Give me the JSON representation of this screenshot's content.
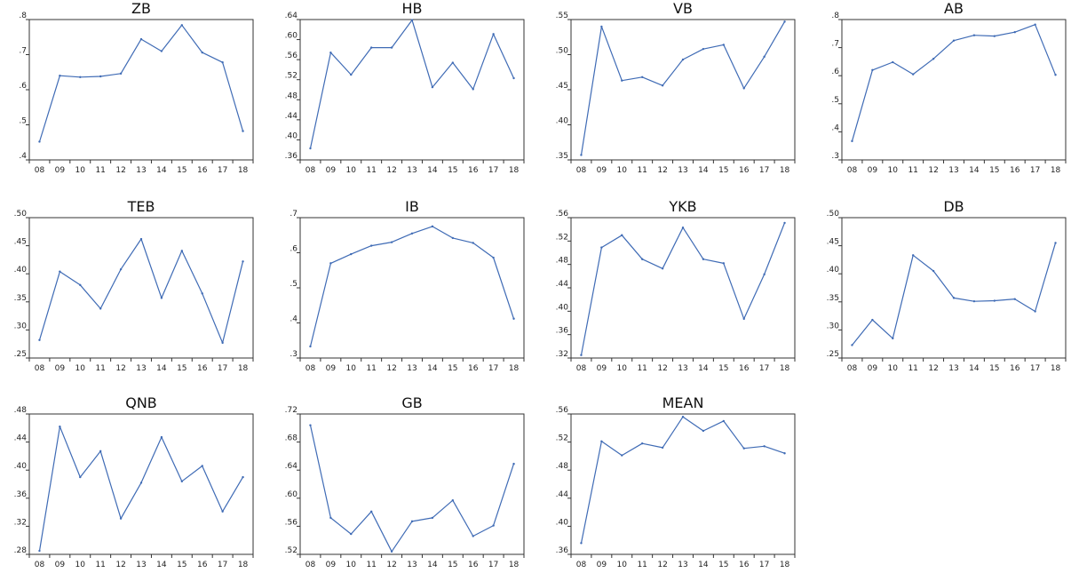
{
  "chart_data": [
    {
      "type": "line",
      "title": "ZB",
      "categories": [
        "08",
        "09",
        "10",
        "11",
        "12",
        "13",
        "14",
        "15",
        "16",
        "17",
        "18"
      ],
      "yticks": [
        ".4",
        ".5",
        ".6",
        ".7",
        ".8"
      ],
      "ylim": [
        0.4,
        0.8
      ],
      "values": [
        0.452,
        0.64,
        0.636,
        0.638,
        0.646,
        0.744,
        0.71,
        0.784,
        0.706,
        0.678,
        0.482
      ],
      "color": "#3f6bb5",
      "grid": false
    },
    {
      "type": "line",
      "title": "HB",
      "categories": [
        "08",
        "09",
        "10",
        "11",
        "12",
        "13",
        "14",
        "15",
        "16",
        "17",
        "18"
      ],
      "yticks": [
        ".36",
        ".40",
        ".44",
        ".48",
        ".52",
        ".56",
        ".60",
        ".64"
      ],
      "ylim": [
        0.36,
        0.64
      ],
      "values": [
        0.383,
        0.574,
        0.53,
        0.584,
        0.584,
        0.639,
        0.505,
        0.554,
        0.501,
        0.611,
        0.523
      ],
      "color": "#3f6bb5",
      "grid": false
    },
    {
      "type": "line",
      "title": "VB",
      "categories": [
        "08",
        "09",
        "10",
        "11",
        "12",
        "13",
        "14",
        "15",
        "16",
        "17",
        "18"
      ],
      "yticks": [
        ".35",
        ".40",
        ".45",
        ".50",
        ".55"
      ],
      "ylim": [
        0.35,
        0.55
      ],
      "values": [
        0.357,
        0.54,
        0.463,
        0.468,
        0.456,
        0.493,
        0.508,
        0.514,
        0.452,
        0.497,
        0.547
      ],
      "color": "#3f6bb5",
      "grid": false
    },
    {
      "type": "line",
      "title": "AB",
      "categories": [
        "08",
        "09",
        "10",
        "11",
        "12",
        "13",
        "14",
        "15",
        "16",
        "17",
        "18"
      ],
      "yticks": [
        ".3",
        ".4",
        ".5",
        ".6",
        ".7",
        ".8"
      ],
      "ylim": [
        0.3,
        0.8
      ],
      "values": [
        0.367,
        0.62,
        0.648,
        0.605,
        0.66,
        0.725,
        0.744,
        0.741,
        0.755,
        0.782,
        0.603
      ],
      "color": "#3f6bb5",
      "grid": false
    },
    {
      "type": "line",
      "title": "TEB",
      "categories": [
        "08",
        "09",
        "10",
        "11",
        "12",
        "13",
        "14",
        "15",
        "16",
        "17",
        "18"
      ],
      "yticks": [
        ".25",
        ".30",
        ".35",
        ".40",
        ".45",
        ".50"
      ],
      "ylim": [
        0.25,
        0.5
      ],
      "values": [
        0.282,
        0.404,
        0.38,
        0.338,
        0.408,
        0.462,
        0.357,
        0.441,
        0.365,
        0.277,
        0.422
      ],
      "color": "#3f6bb5",
      "grid": false
    },
    {
      "type": "line",
      "title": "IB",
      "categories": [
        "08",
        "09",
        "10",
        "11",
        "12",
        "13",
        "14",
        "15",
        "16",
        "17",
        "18"
      ],
      "yticks": [
        ".3",
        ".4",
        ".5",
        ".6",
        ".7"
      ],
      "ylim": [
        0.3,
        0.7
      ],
      "values": [
        0.333,
        0.57,
        0.596,
        0.62,
        0.63,
        0.655,
        0.675,
        0.642,
        0.628,
        0.586,
        0.412
      ],
      "color": "#3f6bb5",
      "grid": false
    },
    {
      "type": "line",
      "title": "YKB",
      "categories": [
        "08",
        "09",
        "10",
        "11",
        "12",
        "13",
        "14",
        "15",
        "16",
        "17",
        "18"
      ],
      "yticks": [
        ".32",
        ".36",
        ".40",
        ".44",
        ".48",
        ".52",
        ".56"
      ],
      "ylim": [
        0.32,
        0.56
      ],
      "values": [
        0.325,
        0.509,
        0.53,
        0.489,
        0.473,
        0.543,
        0.489,
        0.482,
        0.387,
        0.463,
        0.551
      ],
      "color": "#3f6bb5",
      "grid": false
    },
    {
      "type": "line",
      "title": "DB",
      "categories": [
        "08",
        "09",
        "10",
        "11",
        "12",
        "13",
        "14",
        "15",
        "16",
        "17",
        "18"
      ],
      "yticks": [
        ".25",
        ".30",
        ".35",
        ".40",
        ".45",
        ".50"
      ],
      "ylim": [
        0.25,
        0.5
      ],
      "values": [
        0.273,
        0.318,
        0.285,
        0.433,
        0.405,
        0.357,
        0.351,
        0.352,
        0.355,
        0.333,
        0.455
      ],
      "color": "#3f6bb5",
      "grid": false
    },
    {
      "type": "line",
      "title": "QNB",
      "categories": [
        "08",
        "09",
        "10",
        "11",
        "12",
        "13",
        "14",
        "15",
        "16",
        "17",
        "18"
      ],
      "yticks": [
        ".28",
        ".32",
        ".36",
        ".40",
        ".44",
        ".48"
      ],
      "ylim": [
        0.28,
        0.48
      ],
      "values": [
        0.285,
        0.462,
        0.39,
        0.427,
        0.331,
        0.382,
        0.447,
        0.384,
        0.406,
        0.341,
        0.39
      ],
      "color": "#3f6bb5",
      "grid": false
    },
    {
      "type": "line",
      "title": "GB",
      "categories": [
        "08",
        "09",
        "10",
        "11",
        "12",
        "13",
        "14",
        "15",
        "16",
        "17",
        "18"
      ],
      "yticks": [
        ".52",
        ".56",
        ".60",
        ".64",
        ".68",
        ".72"
      ],
      "ylim": [
        0.52,
        0.72
      ],
      "values": [
        0.704,
        0.572,
        0.549,
        0.581,
        0.524,
        0.567,
        0.572,
        0.597,
        0.546,
        0.561,
        0.649
      ],
      "color": "#3f6bb5",
      "grid": false
    },
    {
      "type": "line",
      "title": "MEAN",
      "categories": [
        "08",
        "09",
        "10",
        "11",
        "12",
        "13",
        "14",
        "15",
        "16",
        "17",
        "18"
      ],
      "yticks": [
        ".36",
        ".40",
        ".44",
        ".48",
        ".52",
        ".56"
      ],
      "ylim": [
        0.36,
        0.56
      ],
      "values": [
        0.376,
        0.521,
        0.501,
        0.518,
        0.512,
        0.556,
        0.536,
        0.55,
        0.511,
        0.514,
        0.504
      ],
      "color": "#3f6bb5",
      "grid": false
    }
  ]
}
